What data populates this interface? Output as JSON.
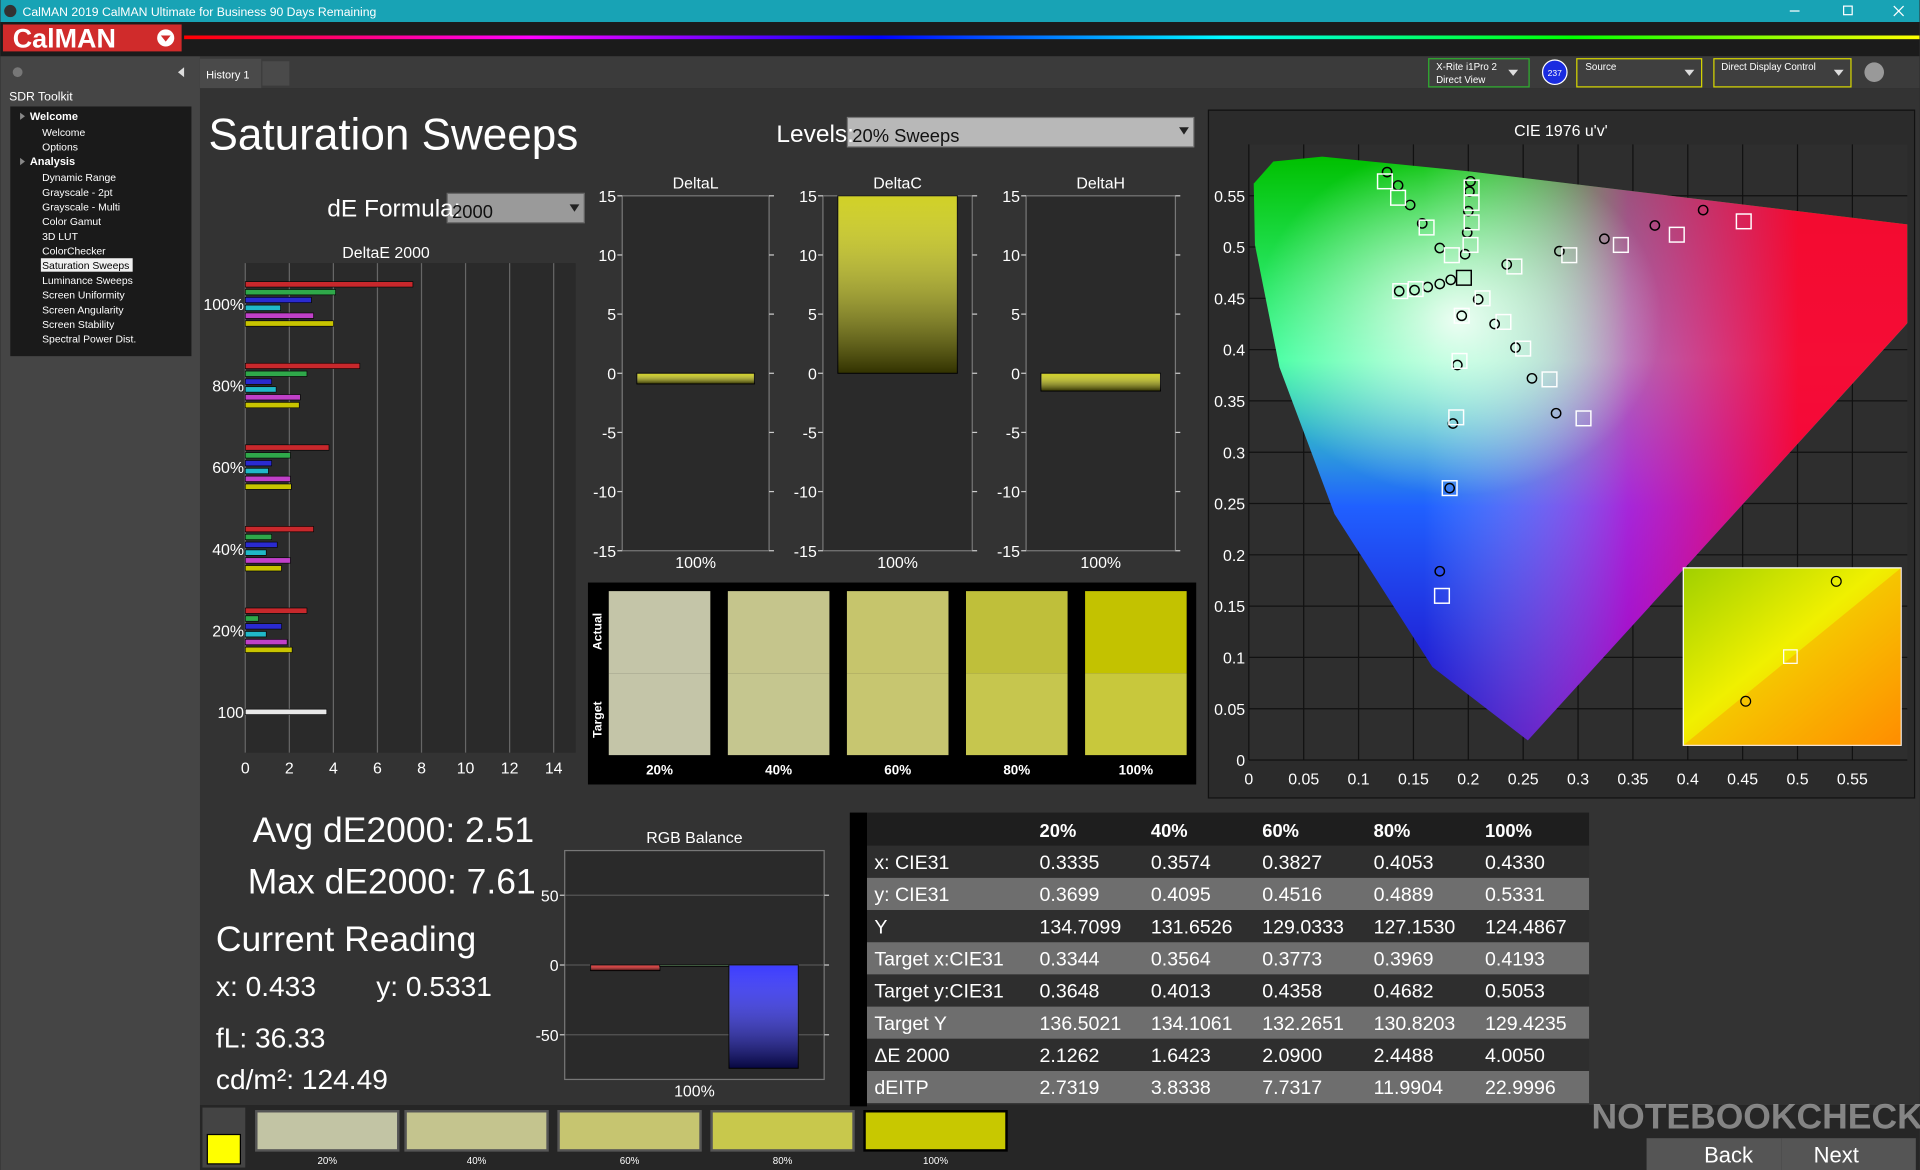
{
  "window": {
    "title": "CalMAN 2019 CalMAN Ultimate for Business 90 Days Remaining",
    "logo": "CalMAN"
  },
  "sidebar": {
    "title": "SDR Toolkit",
    "groups": [
      {
        "label": "Welcome",
        "items": [
          "Welcome",
          "Options"
        ]
      },
      {
        "label": "Analysis",
        "items": [
          "Dynamic Range",
          "Grayscale - 2pt",
          "Grayscale - Multi",
          "Color Gamut",
          "3D LUT",
          "ColorChecker",
          "Saturation Sweeps",
          "Luminance Sweeps",
          "Screen Uniformity",
          "Screen Angularity",
          "Screen Stability",
          "Spectral Power Dist."
        ],
        "selected_item": 6
      }
    ]
  },
  "tabs": [
    "History 1"
  ],
  "toolbar": {
    "meter": "X-Rite i1Pro 2",
    "meter_mode": "Direct View",
    "badge": "237",
    "source": "Source",
    "display": "Direct Display Control"
  },
  "page": {
    "title": "Saturation Sweeps",
    "levels_label": "Levels:",
    "levels_value": "20% Sweeps",
    "formula_label": "dE Formula:",
    "formula_value": "2000"
  },
  "deltae_chart": {
    "type": "bar",
    "orientation": "horizontal",
    "title": "DeltaE 2000",
    "categories": [
      "100%",
      "80%",
      "60%",
      "40%",
      "20%",
      "100"
    ],
    "series": [
      {
        "color": "#c8282c",
        "values": [
          7.61,
          5.2,
          3.8,
          3.1,
          2.8,
          null
        ]
      },
      {
        "color": "#2fa84a",
        "values": [
          4.1,
          2.8,
          2.05,
          1.2,
          0.6,
          null
        ]
      },
      {
        "color": "#2a2ad0",
        "values": [
          3.0,
          1.2,
          1.2,
          1.45,
          1.65,
          null
        ]
      },
      {
        "color": "#20b8c8",
        "values": [
          1.6,
          1.4,
          1.05,
          0.95,
          0.95,
          null
        ]
      },
      {
        "color": "#c040c8",
        "values": [
          3.1,
          2.5,
          2.05,
          2.05,
          1.9,
          null
        ]
      },
      {
        "color": "#c8c400",
        "values": [
          4.005,
          2.4488,
          2.09,
          1.6423,
          2.1262,
          null
        ]
      },
      {
        "color": "#e8e8e8",
        "values": [
          null,
          null,
          null,
          null,
          null,
          3.7
        ]
      }
    ],
    "xlim": [
      0,
      15
    ],
    "xticks": [
      0,
      2,
      4,
      6,
      8,
      10,
      12,
      14
    ],
    "grid": true
  },
  "delta_charts": [
    {
      "type": "bar",
      "title": "DeltaL",
      "categories": [
        "100%"
      ],
      "values": [
        -0.9
      ],
      "color": "#c8c800",
      "ylim": [
        -15,
        15
      ],
      "yticks": [
        15,
        10,
        5,
        0,
        -5,
        -10,
        -15
      ],
      "grid": false
    },
    {
      "type": "bar",
      "title": "DeltaC",
      "categories": [
        "100%"
      ],
      "values": [
        15
      ],
      "color": "#c8c800",
      "ylim": [
        -15,
        15
      ],
      "yticks": [
        15,
        10,
        5,
        0,
        -5,
        -10,
        -15
      ],
      "grid": false
    },
    {
      "type": "bar",
      "title": "DeltaH",
      "categories": [
        "100%"
      ],
      "values": [
        -1.5
      ],
      "color": "#c8c800",
      "ylim": [
        -15,
        15
      ],
      "yticks": [
        15,
        10,
        5,
        0,
        -5,
        -10,
        -15
      ],
      "grid": false
    }
  ],
  "swatches": {
    "row_labels": [
      "Actual",
      "Target"
    ],
    "levels": [
      "20%",
      "40%",
      "60%",
      "80%",
      "100%"
    ],
    "actual_colors": [
      "#c4c5a8",
      "#c5c58c",
      "#c6c56c",
      "#bfbf3a",
      "#c3c200"
    ],
    "target_colors": [
      "#c4c5a8",
      "#c5c68f",
      "#c7c670",
      "#c6c64e",
      "#c8c83c"
    ]
  },
  "stats": {
    "avg": "Avg dE2000: 2.51",
    "max": "Max dE2000: 7.61",
    "heading": "Current Reading",
    "x": "x: 0.433",
    "y": "y: 0.5331",
    "fl": "fL: 36.33",
    "luminance": "cd/m²: 124.49"
  },
  "rgb_chart": {
    "type": "bar",
    "title": "RGB Balance",
    "categories": [
      "100%"
    ],
    "series": [
      {
        "color": "#e01010",
        "values": [
          -4
        ]
      },
      {
        "color": "#20a020",
        "values": [
          -1
        ]
      },
      {
        "color": "#1a1aff",
        "values": [
          -74
        ]
      }
    ],
    "ylim": [
      -82,
      82
    ],
    "yticks": [
      50,
      0,
      -50
    ],
    "grid": true
  },
  "table": {
    "header": [
      "20%",
      "40%",
      "60%",
      "80%",
      "100%"
    ],
    "rows": [
      [
        "x: CIE31",
        "0.3335",
        "0.3574",
        "0.3827",
        "0.4053",
        "0.4330"
      ],
      [
        "y: CIE31",
        "0.3699",
        "0.4095",
        "0.4516",
        "0.4889",
        "0.5331"
      ],
      [
        "Y",
        "134.7099",
        "131.6526",
        "129.0333",
        "127.1530",
        "124.4867"
      ],
      [
        "Target x:CIE31",
        "0.3344",
        "0.3564",
        "0.3773",
        "0.3969",
        "0.4193"
      ],
      [
        "Target y:CIE31",
        "0.3648",
        "0.4013",
        "0.4358",
        "0.4682",
        "0.5053"
      ],
      [
        "Target Y",
        "136.5021",
        "134.1061",
        "132.2651",
        "130.8203",
        "129.4235"
      ],
      [
        "ΔE 2000",
        "2.1262",
        "1.6423",
        "2.0900",
        "2.4488",
        "4.0050"
      ],
      [
        "dEITP",
        "2.7319",
        "3.8338",
        "7.7317",
        "11.9904",
        "22.9996"
      ]
    ]
  },
  "cie_chart": {
    "type": "scatter",
    "title": "CIE 1976 u'v'",
    "xlim": [
      0,
      0.6
    ],
    "ylim": [
      0,
      0.6
    ],
    "xticks": [
      0,
      0.05,
      0.1,
      0.15,
      0.2,
      0.25,
      0.3,
      0.35,
      0.4,
      0.45,
      0.5,
      0.55
    ],
    "yticks": [
      0,
      0.05,
      0.1,
      0.15,
      0.2,
      0.25,
      0.3,
      0.35,
      0.4,
      0.45,
      0.5,
      0.55
    ],
    "grid": true,
    "series": [
      {
        "marker": "circle",
        "color": "#000000",
        "x": [
          0.414,
          0.37,
          0.324,
          0.283,
          0.235,
          0.126,
          0.136,
          0.147,
          0.158,
          0.174,
          0.174,
          0.183,
          0.186,
          0.19,
          0.194,
          0.137,
          0.151,
          0.163,
          0.174,
          0.184,
          0.28,
          0.258,
          0.243,
          0.224,
          0.209,
          0.202,
          0.201,
          0.2,
          0.199,
          0.197
        ],
        "y": [
          0.536,
          0.521,
          0.508,
          0.496,
          0.483,
          0.573,
          0.56,
          0.541,
          0.523,
          0.499,
          0.184,
          0.265,
          0.328,
          0.385,
          0.433,
          0.457,
          0.458,
          0.461,
          0.464,
          0.468,
          0.338,
          0.372,
          0.402,
          0.425,
          0.449,
          0.564,
          0.554,
          0.535,
          0.514,
          0.493
        ]
      },
      {
        "marker": "square",
        "color": "#ffffff",
        "x": [
          0.451,
          0.39,
          0.339,
          0.292,
          0.242,
          0.124,
          0.136,
          0.162,
          0.185,
          0.176,
          0.183,
          0.189,
          0.192,
          0.194,
          0.138,
          0.152,
          0.305,
          0.274,
          0.25,
          0.232,
          0.213,
          0.203,
          0.203,
          0.203,
          0.202
        ],
        "y": [
          0.525,
          0.512,
          0.502,
          0.492,
          0.481,
          0.564,
          0.548,
          0.519,
          0.492,
          0.16,
          0.265,
          0.334,
          0.389,
          0.433,
          0.457,
          0.459,
          0.333,
          0.371,
          0.401,
          0.427,
          0.45,
          0.558,
          0.543,
          0.524,
          0.502
        ]
      },
      {
        "marker": "square",
        "color": "#000000",
        "x": [
          0.196
        ],
        "y": [
          0.47
        ]
      }
    ]
  },
  "bottom_strip": {
    "levels": [
      "20%",
      "40%",
      "60%",
      "80%",
      "100%"
    ],
    "colors": [
      "#c2c4a4",
      "#c4c48e",
      "#c6c570",
      "#c8c84c",
      "#c8c800"
    ],
    "current_color": "#ffff00",
    "back": "Back",
    "next": "Next"
  },
  "watermark": "NOTEBOOKCHECK"
}
